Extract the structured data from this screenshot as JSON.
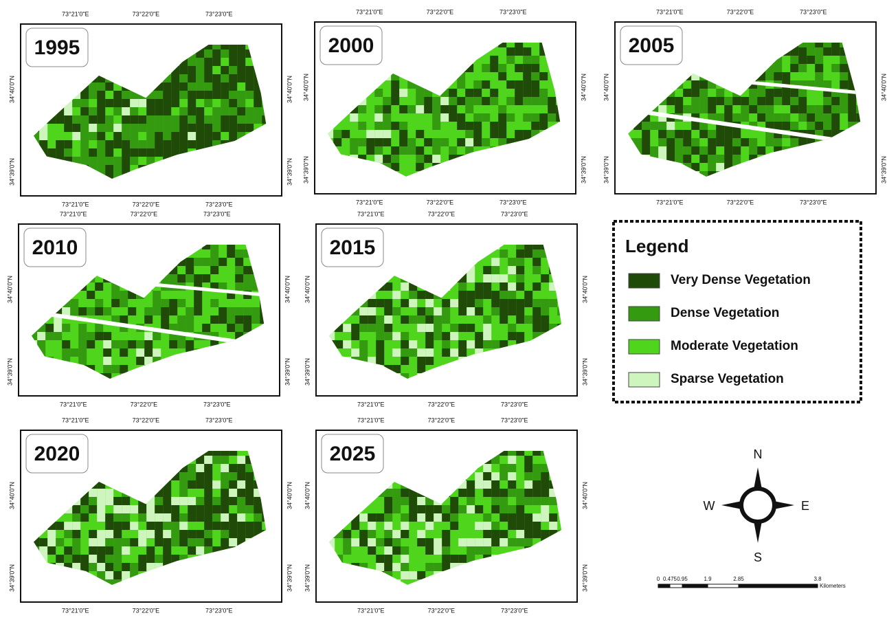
{
  "panels": [
    {
      "year": "1995",
      "top_ticks": [
        "73°21'0\"E",
        "73°22'0\"E",
        "73°23'0\"E"
      ],
      "bottom_ticks": [
        "73°21'0\"E",
        "73°22'0\"E",
        "73°23'0\"E"
      ],
      "left_ticks": [
        "34°40'0\"N",
        "34°39'0\"N"
      ],
      "right_ticks": [
        "34°40'0\"N",
        "34°39'0\"N"
      ]
    },
    {
      "year": "2000",
      "top_ticks": [
        "73°21'0\"E",
        "73°22'0\"E",
        "73°23'0\"E"
      ],
      "bottom_ticks": [
        "73°21'0\"E",
        "73°22'0\"E",
        "73°23'0\"E"
      ],
      "left_ticks": [
        "34°40'0\"N",
        "34°39'0\"N"
      ],
      "right_ticks": [
        "34°40'0\"N",
        "34°39'0\"N"
      ]
    },
    {
      "year": "2005",
      "top_ticks": [
        "73°21'0\"E",
        "73°22'0\"E",
        "73°23'0\"E"
      ],
      "bottom_ticks": [
        "73°21'0\"E",
        "73°22'0\"E",
        "73°23'0\"E"
      ],
      "left_ticks": [
        "34°40'0\"N",
        "34°39'0\"N"
      ],
      "right_ticks": [
        "34°40'0\"N",
        "34°39'0\"N"
      ]
    },
    {
      "year": "2010",
      "top_ticks": [
        "73°21'0\"E",
        "73°22'0\"E",
        "73°23'0\"E"
      ],
      "bottom_ticks": [
        "73°21'0\"E",
        "73°22'0\"E",
        "73°23'0\"E"
      ],
      "left_ticks": [
        "34°40'0\"N",
        "34°39'0\"N"
      ],
      "right_ticks": [
        "34°40'0\"N",
        "34°39'0\"N"
      ]
    },
    {
      "year": "2015",
      "top_ticks": [
        "73°21'0\"E",
        "73°22'0\"E",
        "73°23'0\"E"
      ],
      "bottom_ticks": [
        "73°21'0\"E",
        "73°22'0\"E",
        "73°23'0\"E"
      ],
      "left_ticks": [
        "34°40'0\"N",
        "34°39'0\"N"
      ],
      "right_ticks": [
        "34°40'0\"N",
        "34°39'0\"N"
      ]
    },
    {
      "year": "2020",
      "top_ticks": [
        "73°21'0\"E",
        "73°22'0\"E",
        "73°23'0\"E"
      ],
      "bottom_ticks": [
        "73°21'0\"E",
        "73°22'0\"E",
        "73°23'0\"E"
      ],
      "left_ticks": [
        "34°40'0\"N",
        "34°39'0\"N"
      ],
      "right_ticks": [
        "34°40'0\"N",
        "34°39'0\"N"
      ]
    },
    {
      "year": "2025",
      "top_ticks": [
        "73°21'0\"E",
        "73°22'0\"E",
        "73°23'0\"E"
      ],
      "bottom_ticks": [
        "73°21'0\"E",
        "73°22'0\"E",
        "73°23'0\"E"
      ],
      "left_ticks": [
        "34°40'0\"N",
        "34°39'0\"N"
      ],
      "right_ticks": [
        "34°40'0\"N",
        "34°39'0\"N"
      ]
    }
  ],
  "legend": {
    "title": "Legend",
    "items": [
      {
        "label": "Very Dense Vegetation",
        "color": "#1f4a08"
      },
      {
        "label": "Dense Vegetation",
        "color": "#349a10"
      },
      {
        "label": "Moderate Vegetation",
        "color": "#4fd61c"
      },
      {
        "label": "Sparse Vegetation",
        "color": "#cdf5bd"
      }
    ]
  },
  "compass": {
    "north": "N",
    "east": "E",
    "south": "S",
    "west": "W"
  },
  "scale": {
    "ticks": [
      "0",
      "0.475",
      "0.95",
      "1.9",
      "2.85",
      "3.8"
    ],
    "unit": "Kilometers"
  }
}
